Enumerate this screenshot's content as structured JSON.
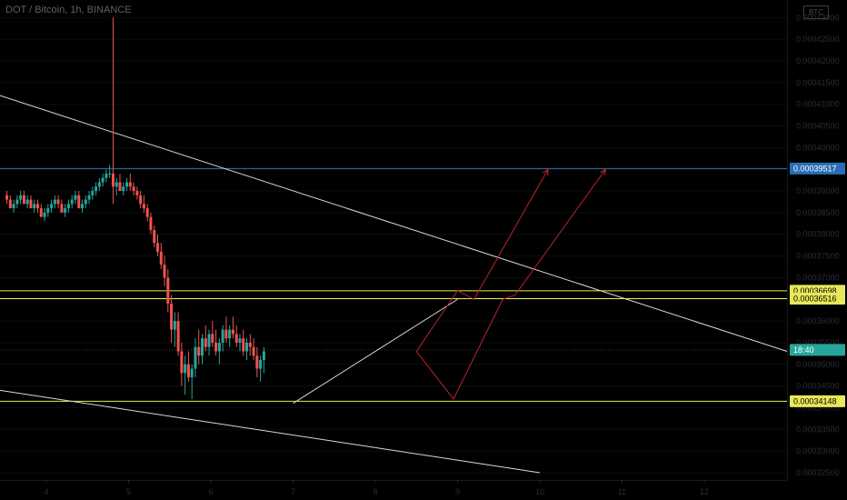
{
  "header": {
    "symbol_title": "DOT / Bitcoin, 1h, BINANCE",
    "currency_button": "BTC"
  },
  "chart_data": {
    "type": "candlestick",
    "title": "DOT / Bitcoin, 1h, BINANCE",
    "ylim": [
      0.000325,
      0.000433
    ],
    "y_ticks": [
      "0.00043000",
      "0.00042500",
      "0.00042000",
      "0.00041500",
      "0.00041000",
      "0.00040500",
      "0.00040000",
      "0.00039500",
      "0.00039000",
      "0.00038500",
      "0.00038000",
      "0.00037500",
      "0.00037000",
      "0.00036500",
      "0.00036000",
      "0.00035500",
      "0.00035000",
      "0.00034500",
      "0.00034000",
      "0.00033500",
      "0.00033000",
      "0.00032500"
    ],
    "x_ticks": [
      "4",
      "5",
      "6",
      "7",
      "8",
      "9",
      "10",
      "11",
      "12"
    ],
    "price_labels": [
      {
        "text": "0.00039517",
        "value": 0.00039517,
        "color": "#2a6fb5"
      },
      {
        "text": "0.00036698",
        "value": 0.00036698,
        "color": "#e8e85a"
      },
      {
        "text": "0.00036516",
        "value": 0.00036516,
        "color": "#e8e85a"
      },
      {
        "text": "0.00034148",
        "value": 0.00034148,
        "color": "#e8e85a"
      }
    ],
    "countdown_label": {
      "text": "18:40",
      "value": 0.00035333,
      "color": "#26a69a"
    },
    "candles": [
      [
        0.000389,
        0.00039,
        0.000387,
        0.000388
      ],
      [
        0.000388,
        0.000389,
        0.000386,
        0.000386
      ],
      [
        0.000386,
        0.000388,
        0.000385,
        0.000387
      ],
      [
        0.000387,
        0.000389,
        0.000386,
        0.000388
      ],
      [
        0.000388,
        0.00039,
        0.000387,
        0.000389
      ],
      [
        0.000389,
        0.00039,
        0.000387,
        0.000387
      ],
      [
        0.000387,
        0.000389,
        0.000386,
        0.000388
      ],
      [
        0.000388,
        0.000389,
        0.000386,
        0.000386
      ],
      [
        0.000386,
        0.000388,
        0.000385,
        0.000387
      ],
      [
        0.000387,
        0.000388,
        0.000385,
        0.000386
      ],
      [
        0.000386,
        0.000387,
        0.000384,
        0.000384
      ],
      [
        0.000384,
        0.000386,
        0.000383,
        0.000385
      ],
      [
        0.000385,
        0.000387,
        0.000384,
        0.000386
      ],
      [
        0.000386,
        0.000388,
        0.000385,
        0.000387
      ],
      [
        0.000387,
        0.000389,
        0.000386,
        0.000388
      ],
      [
        0.000388,
        0.000389,
        0.000386,
        0.000387
      ],
      [
        0.000387,
        0.000388,
        0.000385,
        0.000385
      ],
      [
        0.000385,
        0.000387,
        0.000384,
        0.000386
      ],
      [
        0.000386,
        0.000388,
        0.000385,
        0.000387
      ],
      [
        0.000387,
        0.000389,
        0.000386,
        0.000388
      ],
      [
        0.000388,
        0.00039,
        0.000387,
        0.000389
      ],
      [
        0.000389,
        0.00039,
        0.000386,
        0.000386
      ],
      [
        0.000386,
        0.000388,
        0.000385,
        0.000387
      ],
      [
        0.000387,
        0.000389,
        0.000386,
        0.000388
      ],
      [
        0.000388,
        0.00039,
        0.000387,
        0.000389
      ],
      [
        0.000389,
        0.000391,
        0.000388,
        0.00039
      ],
      [
        0.00039,
        0.000392,
        0.000389,
        0.000391
      ],
      [
        0.000391,
        0.000393,
        0.00039,
        0.000392
      ],
      [
        0.000392,
        0.000394,
        0.000391,
        0.000393
      ],
      [
        0.000393,
        0.000395,
        0.000392,
        0.000394
      ],
      [
        0.000394,
        0.000396,
        0.000393,
        0.000394
      ],
      [
        0.000394,
        0.00043,
        0.000387,
        0.000391
      ],
      [
        0.000391,
        0.000393,
        0.000389,
        0.000392
      ],
      [
        0.000392,
        0.000394,
        0.00039,
        0.00039
      ],
      [
        0.00039,
        0.000392,
        0.000389,
        0.000391
      ],
      [
        0.000391,
        0.000393,
        0.00039,
        0.000392
      ],
      [
        0.000392,
        0.000394,
        0.00039,
        0.000391
      ],
      [
        0.000391,
        0.000392,
        0.000389,
        0.00039
      ],
      [
        0.00039,
        0.000391,
        0.000388,
        0.000389
      ],
      [
        0.000389,
        0.00039,
        0.000386,
        0.000387
      ],
      [
        0.000387,
        0.000389,
        0.000385,
        0.000386
      ],
      [
        0.000386,
        0.000387,
        0.000383,
        0.000384
      ],
      [
        0.000384,
        0.000385,
        0.00038,
        0.000381
      ],
      [
        0.000381,
        0.000382,
        0.000377,
        0.000378
      ],
      [
        0.000378,
        0.00038,
        0.000375,
        0.000376
      ],
      [
        0.000376,
        0.000378,
        0.000372,
        0.000373
      ],
      [
        0.000373,
        0.000375,
        0.000368,
        0.00037
      ],
      [
        0.00037,
        0.000372,
        0.000362,
        0.000364
      ],
      [
        0.000364,
        0.000366,
        0.000355,
        0.000358
      ],
      [
        0.000358,
        0.000362,
        0.000354,
        0.00036
      ],
      [
        0.00036,
        0.000362,
        0.000352,
        0.000353
      ],
      [
        0.000353,
        0.000355,
        0.000345,
        0.000348
      ],
      [
        0.000348,
        0.000352,
        0.000343,
        0.00035
      ],
      [
        0.00035,
        0.000353,
        0.000346,
        0.000347
      ],
      [
        0.000347,
        0.00035,
        0.000342,
        0.000349
      ],
      [
        0.000349,
        0.000356,
        0.000347,
        0.000354
      ],
      [
        0.000354,
        0.000358,
        0.00035,
        0.000352
      ],
      [
        0.000352,
        0.000357,
        0.00035,
        0.000356
      ],
      [
        0.000356,
        0.000359,
        0.000353,
        0.000354
      ],
      [
        0.000354,
        0.000358,
        0.000352,
        0.000357
      ],
      [
        0.000357,
        0.00036,
        0.000354,
        0.000355
      ],
      [
        0.000355,
        0.000358,
        0.000352,
        0.000353
      ],
      [
        0.000353,
        0.000356,
        0.00035,
        0.000355
      ],
      [
        0.000355,
        0.000359,
        0.000353,
        0.000358
      ],
      [
        0.000358,
        0.000361,
        0.000355,
        0.000356
      ],
      [
        0.000356,
        0.000359,
        0.000354,
        0.000358
      ],
      [
        0.000358,
        0.000361,
        0.000356,
        0.000357
      ],
      [
        0.000357,
        0.000359,
        0.000354,
        0.000355
      ],
      [
        0.000355,
        0.000357,
        0.000353,
        0.000356
      ],
      [
        0.000356,
        0.000358,
        0.000352,
        0.000353
      ],
      [
        0.000353,
        0.000356,
        0.000351,
        0.000355
      ],
      [
        0.000355,
        0.000357,
        0.000352,
        0.000354
      ],
      [
        0.000354,
        0.000356,
        0.000351,
        0.000352
      ],
      [
        0.000352,
        0.000354,
        0.000347,
        0.000349
      ],
      [
        0.000349,
        0.000352,
        0.000346,
        0.000351
      ],
      [
        0.000351,
        0.000354,
        0.000348,
        0.000353
      ]
    ],
    "trend_lines": [
      {
        "name": "upper descending trendline",
        "color": "#d9d9d9",
        "from": [
          "x-start",
          0.000412
        ],
        "to": [
          "x-end",
          0.000353
        ]
      },
      {
        "name": "lower descending trendline",
        "color": "#d9d9d9",
        "from": [
          "x-start",
          0.000344
        ],
        "to": [
          "10",
          0.000325
        ]
      },
      {
        "name": "rising support line",
        "color": "#d9d9d9",
        "from": [
          "7",
          0.000341
        ],
        "to": [
          "9",
          0.000365
        ]
      }
    ],
    "projections": [
      {
        "name": "projection path 1",
        "color": "#c0232b",
        "points": [
          [
            8.5,
            0.000353
          ],
          [
            9.0,
            0.000367
          ],
          [
            9.2,
            0.000365
          ],
          [
            10.1,
            0.000395
          ]
        ]
      },
      {
        "name": "projection path 2",
        "color": "#c0232b",
        "points": [
          [
            8.5,
            0.000353
          ],
          [
            8.95,
            0.000342
          ],
          [
            9.55,
            0.000365
          ],
          [
            9.7,
            0.000366
          ],
          [
            10.8,
            0.000395
          ]
        ]
      }
    ]
  },
  "colors": {
    "background": "#000000",
    "up_candle": "#26a69a",
    "down_candle": "#ef5350",
    "axis_text": "#2a2d33",
    "horizontal_blue": "#2a6fb5",
    "horizontal_yellow": "#e8e85a"
  }
}
